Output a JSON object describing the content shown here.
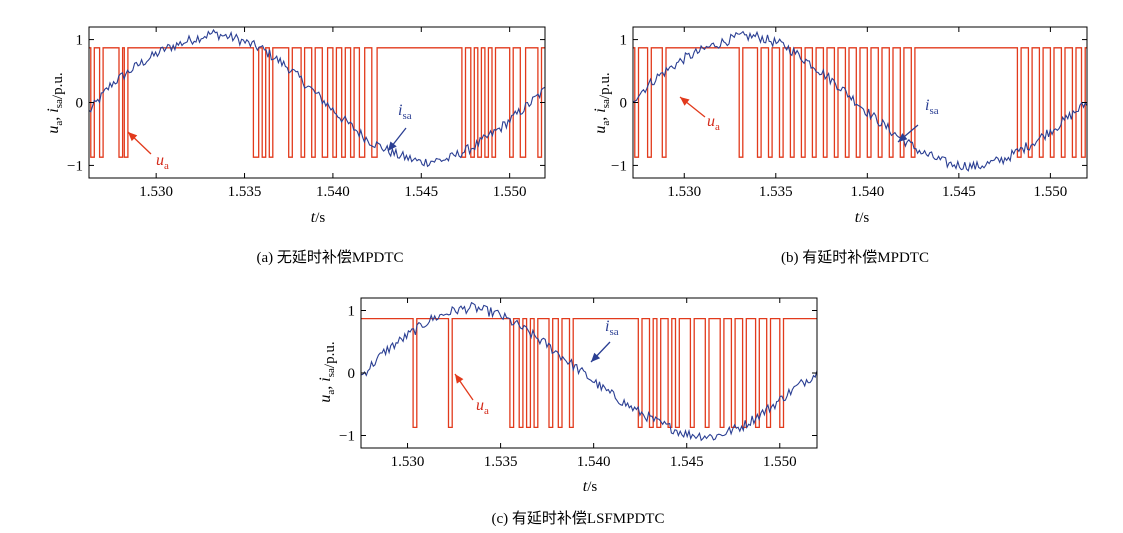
{
  "colors": {
    "ua": "#e23a1c",
    "isa": "#2b3f93",
    "arrow_ua": "#e23a1c",
    "arrow_isa": "#2b3f93",
    "frame": "#000000"
  },
  "chart_data": [
    {
      "type": "line",
      "caption": "(a) 无延时补偿MPDTC",
      "xlabel": "t/s",
      "ylabel": "ua, isa/p.u.",
      "xlim": [
        1.5262,
        1.552
      ],
      "ylim": [
        -1.2,
        1.2
      ],
      "xticks": [
        "1.530",
        "1.535",
        "1.540",
        "1.545",
        "1.550"
      ],
      "xtick_values": [
        1.53,
        1.535,
        1.54,
        1.545,
        1.55
      ],
      "yticks": [
        "1",
        "0",
        "−1"
      ],
      "ytick_values": [
        1,
        0,
        -1
      ],
      "annotations": {
        "ua": "ua",
        "isa": "isa"
      },
      "series": [
        {
          "name": "ua",
          "kind": "step",
          "levels": [
            0.87,
            -0.87
          ],
          "start_level": 0.87,
          "switch_x": [
            1.5263,
            1.5265,
            1.5268,
            1.527,
            1.5279,
            1.5281,
            1.5282,
            1.5284,
            1.5355,
            1.5358,
            1.536,
            1.5362,
            1.5364,
            1.5366,
            1.5375,
            1.5377,
            1.5382,
            1.5384,
            1.5388,
            1.539,
            1.5394,
            1.5397,
            1.54,
            1.5402,
            1.5405,
            1.5407,
            1.541,
            1.5412,
            1.5415,
            1.5418,
            1.5422,
            1.5425,
            1.5473,
            1.5475,
            1.5478,
            1.548,
            1.5482,
            1.5484,
            1.5486,
            1.5488,
            1.549,
            1.5492,
            1.55,
            1.5502,
            1.5506,
            1.5509,
            1.5516,
            1.5518
          ]
        },
        {
          "name": "isa",
          "kind": "sine",
          "x": [
            1.5262,
            1.5275,
            1.529,
            1.5305,
            1.532,
            1.5332,
            1.5345,
            1.536,
            1.5375,
            1.539,
            1.5405,
            1.542,
            1.5435,
            1.545,
            1.5465,
            1.548,
            1.5495,
            1.551,
            1.552
          ],
          "y": [
            -0.15,
            0.3,
            0.6,
            0.85,
            1.0,
            1.1,
            1.02,
            0.85,
            0.55,
            0.15,
            -0.25,
            -0.6,
            -0.82,
            -0.95,
            -0.9,
            -0.7,
            -0.4,
            -0.05,
            0.2
          ]
        }
      ]
    },
    {
      "type": "line",
      "caption": "(b) 有延时补偿MPDTC",
      "xlabel": "t/s",
      "ylabel": "ua, isa/p.u.",
      "xlim": [
        1.5272,
        1.552
      ],
      "ylim": [
        -1.2,
        1.2
      ],
      "xticks": [
        "1.530",
        "1.535",
        "1.540",
        "1.545",
        "1.550"
      ],
      "xtick_values": [
        1.53,
        1.535,
        1.54,
        1.545,
        1.55
      ],
      "yticks": [
        "1",
        "0",
        "−1"
      ],
      "ytick_values": [
        1,
        0,
        -1
      ],
      "annotations": {
        "ua": "ua",
        "isa": "isa"
      },
      "series": [
        {
          "name": "ua",
          "kind": "step",
          "levels": [
            0.87,
            -0.87
          ],
          "start_level": 0.87,
          "switch_x": [
            1.5273,
            1.5275,
            1.528,
            1.5282,
            1.5288,
            1.529,
            1.533,
            1.5332,
            1.534,
            1.5342,
            1.5346,
            1.5348,
            1.5352,
            1.5354,
            1.5358,
            1.536,
            1.5364,
            1.5366,
            1.537,
            1.5372,
            1.5376,
            1.5378,
            1.5382,
            1.5384,
            1.5388,
            1.539,
            1.5394,
            1.5396,
            1.54,
            1.5402,
            1.5406,
            1.5408,
            1.5412,
            1.5414,
            1.5418,
            1.542,
            1.5424,
            1.5426,
            1.5482,
            1.5484,
            1.5488,
            1.549,
            1.5494,
            1.5496,
            1.55,
            1.5502,
            1.5506,
            1.5508,
            1.5512,
            1.5514,
            1.5517,
            1.5519
          ]
        },
        {
          "name": "isa",
          "kind": "sine",
          "x": [
            1.5272,
            1.5285,
            1.53,
            1.5315,
            1.533,
            1.534,
            1.5355,
            1.537,
            1.5385,
            1.54,
            1.5415,
            1.543,
            1.5445,
            1.546,
            1.5475,
            1.549,
            1.5505,
            1.552
          ],
          "y": [
            0.05,
            0.4,
            0.7,
            0.9,
            1.05,
            1.05,
            0.9,
            0.6,
            0.25,
            -0.15,
            -0.5,
            -0.8,
            -0.98,
            -1.02,
            -0.9,
            -0.65,
            -0.35,
            0.0
          ]
        }
      ]
    },
    {
      "type": "line",
      "caption": "(c) 有延时补偿LSFMPDTC",
      "xlabel": "t/s",
      "ylabel": "ua, isa/p.u.",
      "xlim": [
        1.5275,
        1.552
      ],
      "ylim": [
        -1.2,
        1.2
      ],
      "xticks": [
        "1.530",
        "1.535",
        "1.540",
        "1.545",
        "1.550"
      ],
      "xtick_values": [
        1.53,
        1.535,
        1.54,
        1.545,
        1.55
      ],
      "yticks": [
        "1",
        "0",
        "−1"
      ],
      "ytick_values": [
        1,
        0,
        -1
      ],
      "annotations": {
        "ua": "ua",
        "isa": "isa"
      },
      "series": [
        {
          "name": "ua",
          "kind": "step",
          "levels": [
            0.87,
            -0.87
          ],
          "start_level": 0.87,
          "switch_x": [
            1.5303,
            1.5305,
            1.5322,
            1.5324,
            1.5355,
            1.5357,
            1.536,
            1.5362,
            1.5364,
            1.5366,
            1.5368,
            1.537,
            1.5376,
            1.5378,
            1.5381,
            1.5383,
            1.5387,
            1.5389,
            1.5424,
            1.5426,
            1.543,
            1.5432,
            1.5434,
            1.5436,
            1.544,
            1.5442,
            1.5444,
            1.5446,
            1.5452,
            1.5454,
            1.546,
            1.5462,
            1.5468,
            1.547,
            1.5474,
            1.5476,
            1.548,
            1.5482,
            1.5487,
            1.5489,
            1.5493,
            1.5495,
            1.55,
            1.5502
          ]
        },
        {
          "name": "isa",
          "kind": "sine",
          "x": [
            1.5275,
            1.5288,
            1.53,
            1.5312,
            1.5325,
            1.5335,
            1.5348,
            1.536,
            1.5375,
            1.539,
            1.5405,
            1.542,
            1.5435,
            1.545,
            1.5465,
            1.548,
            1.5495,
            1.551,
            1.552
          ],
          "y": [
            -0.05,
            0.35,
            0.6,
            0.85,
            1.0,
            1.05,
            0.95,
            0.75,
            0.45,
            0.1,
            -0.25,
            -0.55,
            -0.8,
            -0.98,
            -1.02,
            -0.85,
            -0.55,
            -0.2,
            0.0
          ]
        }
      ]
    }
  ]
}
